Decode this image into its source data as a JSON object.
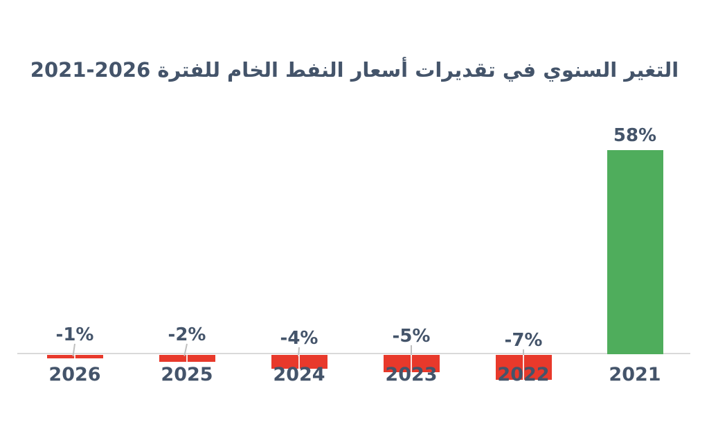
{
  "page": {
    "background_color": "#FFFFFF"
  },
  "chart_data": {
    "type": "bar",
    "title": "التغير السنوي في تقديرات أسعار النفط الخام للفترة 2026-2021",
    "title_direction": "rtl",
    "categories": [
      "2026",
      "2025",
      "2024",
      "2023",
      "2022",
      "2021"
    ],
    "values": [
      -1,
      -2,
      -4,
      -5,
      -7,
      58
    ],
    "value_labels": [
      "-1%",
      "-2%",
      "-4%",
      "-5%",
      "-7%",
      "58%"
    ],
    "ylim": [
      -10,
      62
    ],
    "grid": false,
    "legend": "none",
    "x_axis_position": "zero-line",
    "bar_colors": {
      "positive": "#4FAD5C",
      "negative": "#E8392B"
    },
    "text_color": "#44546A",
    "axis_line_color": "#D9D9D9",
    "leader_line_color": "#BFBFBF"
  }
}
